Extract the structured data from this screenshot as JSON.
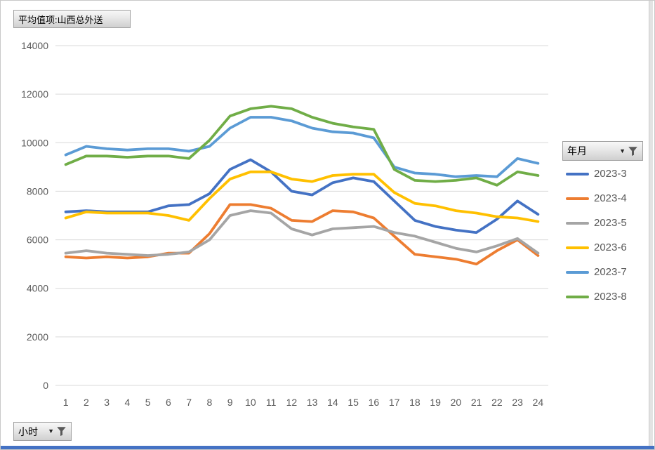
{
  "pivot_buttons": {
    "value_field": {
      "label": "平均值项:山西总外送"
    },
    "legend_field": {
      "label": "年月",
      "has_dropdown": true,
      "has_filter_icon": true
    },
    "axis_field": {
      "label": "小时",
      "has_dropdown": true,
      "has_filter_icon": true
    }
  },
  "chart_data": {
    "type": "line",
    "title": "",
    "x_field": "小时",
    "legend_field": "年月",
    "x": [
      1,
      2,
      3,
      4,
      5,
      6,
      7,
      8,
      9,
      10,
      11,
      12,
      13,
      14,
      15,
      16,
      17,
      18,
      19,
      20,
      21,
      22,
      23,
      24
    ],
    "ylim": [
      0,
      14000
    ],
    "yticks": [
      0,
      2000,
      4000,
      6000,
      8000,
      10000,
      12000,
      14000
    ],
    "grid": true,
    "legend_position": "right",
    "series": [
      {
        "name": "2023-3",
        "color": "#4472C4",
        "values": [
          7150,
          7200,
          7150,
          7150,
          7150,
          7400,
          7450,
          7900,
          8900,
          9300,
          8800,
          8000,
          7850,
          8350,
          8550,
          8400,
          7600,
          6800,
          6550,
          6400,
          6300,
          6850,
          7600,
          7050
        ]
      },
      {
        "name": "2023-4",
        "color": "#ED7D31",
        "values": [
          5300,
          5250,
          5300,
          5250,
          5300,
          5450,
          5450,
          6250,
          7450,
          7450,
          7300,
          6800,
          6750,
          7200,
          7150,
          6900,
          6150,
          5400,
          5300,
          5200,
          5000,
          5550,
          6000,
          5350
        ]
      },
      {
        "name": "2023-5",
        "color": "#A5A5A5",
        "values": [
          5450,
          5550,
          5450,
          5400,
          5350,
          5400,
          5500,
          6000,
          7000,
          7200,
          7100,
          6450,
          6200,
          6450,
          6500,
          6550,
          6300,
          6150,
          5900,
          5650,
          5500,
          5750,
          6050,
          5450
        ]
      },
      {
        "name": "2023-6",
        "color": "#FFC000",
        "values": [
          6900,
          7150,
          7100,
          7100,
          7100,
          7000,
          6800,
          7700,
          8500,
          8800,
          8800,
          8500,
          8400,
          8650,
          8700,
          8700,
          7950,
          7500,
          7400,
          7200,
          7100,
          6950,
          6900,
          6750
        ]
      },
      {
        "name": "2023-7",
        "color": "#5B9BD5",
        "values": [
          9500,
          9850,
          9750,
          9700,
          9750,
          9750,
          9650,
          9850,
          10600,
          11050,
          11050,
          10900,
          10600,
          10450,
          10400,
          10200,
          9000,
          8750,
          8700,
          8600,
          8650,
          8600,
          9350,
          9150
        ]
      },
      {
        "name": "2023-8",
        "color": "#70AD47",
        "values": [
          9100,
          9450,
          9450,
          9400,
          9450,
          9450,
          9350,
          10100,
          11100,
          11400,
          11500,
          11400,
          11050,
          10800,
          10650,
          10550,
          8900,
          8450,
          8400,
          8450,
          8550,
          8250,
          8800,
          8650
        ]
      }
    ]
  },
  "styles": {
    "gridline_color": "#D9D9D9",
    "axis_text_color": "#595959",
    "bottom_bar_color": "#4472C4",
    "icon_color": "#595959"
  }
}
